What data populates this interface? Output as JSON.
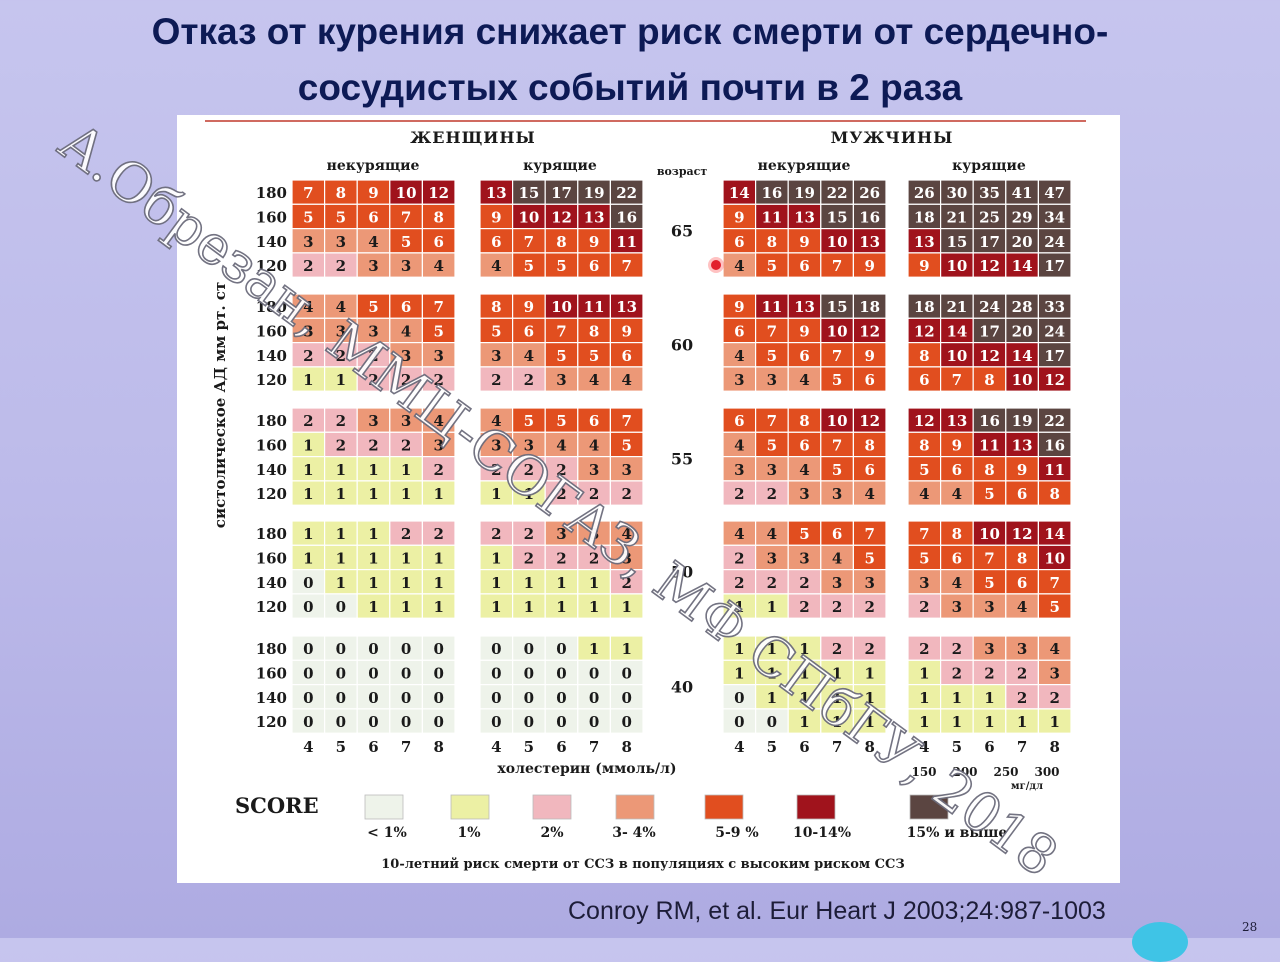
{
  "slide": {
    "title_line1": "Отказ от курения снижает риск смерти от сердечно-",
    "title_line2": "сосудистых событий почти в 2 раза",
    "citation": "Conroy RM, et al. Eur Heart J 2003;24:987-1003",
    "page_number": "28",
    "watermark": "А.Обрезан, ММЦ-СОГАЗ, МФ СПбГУ, 2018"
  },
  "chart_data": {
    "type": "heatmap",
    "title": "",
    "score_label": "SCORE",
    "sex_labels": [
      "ЖЕНЩИНЫ",
      "МУЖЧИНЫ"
    ],
    "smoking_labels": [
      "некурящие",
      "курящие"
    ],
    "age_header": "возраст",
    "ylabel_top": "мм рт. ст",
    "ylabel_bottom": "систолическое АД",
    "xlabel": "холестерин (ммоль/л)",
    "ages": [
      "65",
      "60",
      "55",
      "50",
      "40"
    ],
    "sbp_levels": [
      "180",
      "160",
      "140",
      "120"
    ],
    "chol_mmol": [
      "4",
      "5",
      "6",
      "7",
      "8"
    ],
    "chol_mgdl": [
      "150",
      "200",
      "250",
      "300"
    ],
    "mgdl_unit": "мг/дл",
    "legend": [
      {
        "label": "< 1%",
        "color": "#eef3ea"
      },
      {
        "label": "1%",
        "color": "#ecf0a4"
      },
      {
        "label": "2%",
        "color": "#f1b7be"
      },
      {
        "label": "3- 4%",
        "color": "#ec9877"
      },
      {
        "label": "5-9 %",
        "color": "#e14e1f"
      },
      {
        "label": "10-14%",
        "color": "#a0131c"
      },
      {
        "label": "15% и выше",
        "color": "#5b4541"
      }
    ],
    "footnote": "10-летний риск смерти от ССЗ в популяциях с высоким риском ССЗ",
    "grids": {
      "women_nonsmokers": [
        [
          [
            7,
            8,
            9,
            10,
            12
          ],
          [
            5,
            5,
            6,
            7,
            8
          ],
          [
            3,
            3,
            4,
            5,
            6
          ],
          [
            2,
            2,
            3,
            3,
            4
          ]
        ],
        [
          [
            4,
            4,
            5,
            6,
            7
          ],
          [
            3,
            3,
            3,
            4,
            5
          ],
          [
            2,
            2,
            2,
            3,
            3
          ],
          [
            1,
            1,
            2,
            2,
            2
          ]
        ],
        [
          [
            2,
            2,
            3,
            3,
            4
          ],
          [
            1,
            2,
            2,
            2,
            3
          ],
          [
            1,
            1,
            1,
            1,
            2
          ],
          [
            1,
            1,
            1,
            1,
            1
          ]
        ],
        [
          [
            1,
            1,
            1,
            2,
            2
          ],
          [
            1,
            1,
            1,
            1,
            1
          ],
          [
            0,
            1,
            1,
            1,
            1
          ],
          [
            0,
            0,
            1,
            1,
            1
          ]
        ],
        [
          [
            0,
            0,
            0,
            0,
            0
          ],
          [
            0,
            0,
            0,
            0,
            0
          ],
          [
            0,
            0,
            0,
            0,
            0
          ],
          [
            0,
            0,
            0,
            0,
            0
          ]
        ]
      ],
      "women_smokers": [
        [
          [
            13,
            15,
            17,
            19,
            22
          ],
          [
            9,
            10,
            12,
            13,
            16
          ],
          [
            6,
            7,
            8,
            9,
            11
          ],
          [
            4,
            5,
            5,
            6,
            7
          ]
        ],
        [
          [
            8,
            9,
            10,
            11,
            13
          ],
          [
            5,
            6,
            7,
            8,
            9
          ],
          [
            3,
            4,
            5,
            5,
            6
          ],
          [
            2,
            2,
            3,
            4,
            4
          ]
        ],
        [
          [
            4,
            5,
            5,
            6,
            7
          ],
          [
            3,
            3,
            4,
            4,
            5
          ],
          [
            2,
            2,
            2,
            3,
            3
          ],
          [
            1,
            1,
            2,
            2,
            2
          ]
        ],
        [
          [
            2,
            2,
            3,
            3,
            4
          ],
          [
            1,
            2,
            2,
            2,
            3
          ],
          [
            1,
            1,
            1,
            1,
            2
          ],
          [
            1,
            1,
            1,
            1,
            1
          ]
        ],
        [
          [
            0,
            0,
            0,
            1,
            1
          ],
          [
            0,
            0,
            0,
            0,
            0
          ],
          [
            0,
            0,
            0,
            0,
            0
          ],
          [
            0,
            0,
            0,
            0,
            0
          ]
        ]
      ],
      "men_nonsmokers": [
        [
          [
            14,
            16,
            19,
            22,
            26
          ],
          [
            9,
            11,
            13,
            15,
            16
          ],
          [
            6,
            8,
            9,
            10,
            13
          ],
          [
            4,
            5,
            6,
            7,
            9
          ]
        ],
        [
          [
            9,
            11,
            13,
            15,
            18
          ],
          [
            6,
            7,
            9,
            10,
            12
          ],
          [
            4,
            5,
            6,
            7,
            9
          ],
          [
            3,
            3,
            4,
            5,
            6
          ]
        ],
        [
          [
            6,
            7,
            8,
            10,
            12
          ],
          [
            4,
            5,
            6,
            7,
            8
          ],
          [
            3,
            3,
            4,
            5,
            6
          ],
          [
            2,
            2,
            3,
            3,
            4
          ]
        ],
        [
          [
            4,
            4,
            5,
            6,
            7
          ],
          [
            2,
            3,
            3,
            4,
            5
          ],
          [
            2,
            2,
            2,
            3,
            3
          ],
          [
            1,
            1,
            2,
            2,
            2
          ]
        ],
        [
          [
            1,
            1,
            1,
            2,
            2
          ],
          [
            1,
            1,
            1,
            1,
            1
          ],
          [
            0,
            1,
            1,
            1,
            1
          ],
          [
            0,
            0,
            1,
            1,
            1
          ]
        ]
      ],
      "men_smokers": [
        [
          [
            26,
            30,
            35,
            41,
            47
          ],
          [
            18,
            21,
            25,
            29,
            34
          ],
          [
            13,
            15,
            17,
            20,
            24
          ],
          [
            9,
            10,
            12,
            14,
            17
          ]
        ],
        [
          [
            18,
            21,
            24,
            28,
            33
          ],
          [
            12,
            14,
            17,
            20,
            24
          ],
          [
            8,
            10,
            12,
            14,
            17
          ],
          [
            6,
            7,
            8,
            10,
            12
          ]
        ],
        [
          [
            12,
            13,
            16,
            19,
            22
          ],
          [
            8,
            9,
            11,
            13,
            16
          ],
          [
            5,
            6,
            8,
            9,
            11
          ],
          [
            4,
            4,
            5,
            6,
            8
          ]
        ],
        [
          [
            7,
            8,
            10,
            12,
            14
          ],
          [
            5,
            6,
            7,
            8,
            10
          ],
          [
            3,
            4,
            5,
            6,
            7
          ],
          [
            2,
            3,
            3,
            4,
            5
          ]
        ],
        [
          [
            2,
            2,
            3,
            3,
            4
          ],
          [
            1,
            2,
            2,
            2,
            3
          ],
          [
            1,
            1,
            1,
            2,
            2
          ],
          [
            1,
            1,
            1,
            1,
            1
          ]
        ]
      ]
    }
  }
}
